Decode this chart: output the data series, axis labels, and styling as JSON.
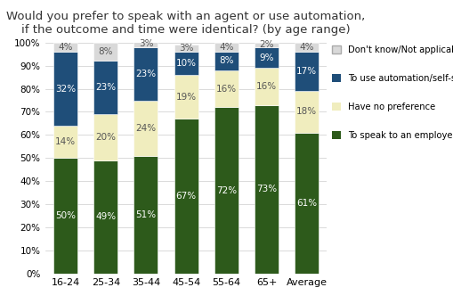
{
  "categories": [
    "16-24",
    "25-34",
    "35-44",
    "45-54",
    "55-64",
    "65+",
    "Average"
  ],
  "series": {
    "To speak to an employee": [
      50,
      49,
      51,
      67,
      72,
      73,
      61
    ],
    "Have no preference": [
      14,
      20,
      24,
      19,
      16,
      16,
      18
    ],
    "To use automation/self-service": [
      32,
      23,
      23,
      10,
      8,
      9,
      17
    ],
    "Don't know/Not applicable": [
      4,
      8,
      3,
      3,
      4,
      2,
      4
    ]
  },
  "colors": {
    "To speak to an employee": "#2d5a1b",
    "Have no preference": "#f0edbe",
    "To use automation/self-service": "#1f4e79",
    "Don't know/Not applicable": "#d9d9d9"
  },
  "title_line1": "Would you prefer to speak with an agent or use automation,",
  "title_line2": "if the outcome and time were identical? (by age range)",
  "ylim": [
    0,
    100
  ],
  "yticks": [
    0,
    10,
    20,
    30,
    40,
    50,
    60,
    70,
    80,
    90,
    100
  ],
  "ytick_labels": [
    "0%",
    "10%",
    "20%",
    "30%",
    "40%",
    "50%",
    "60%",
    "70%",
    "80%",
    "90%",
    "100%"
  ],
  "bar_width": 0.6,
  "legend_order": [
    "Don't know/Not applicable",
    "To use automation/self-service",
    "Have no preference",
    "To speak to an employee"
  ],
  "background_color": "#ffffff",
  "title_fontsize": 9.5,
  "label_fontsize": 7.5
}
